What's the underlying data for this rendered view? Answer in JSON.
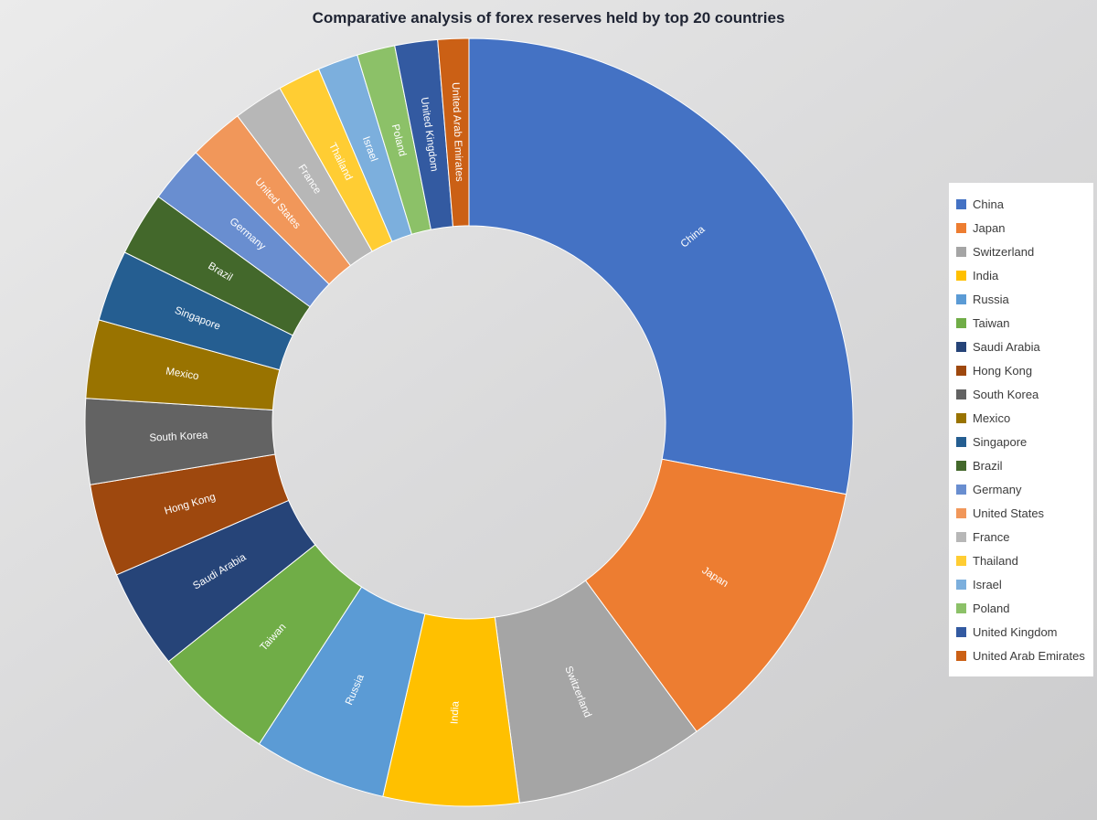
{
  "chart_data": {
    "type": "pie",
    "subtype": "donut",
    "title": "Comparative analysis of forex reserves held by top 20 countries",
    "categories": [
      "China",
      "Japan",
      "Switzerland",
      "India",
      "Russia",
      "Taiwan",
      "Saudi Arabia",
      "Hong Kong",
      "South Korea",
      "Mexico",
      "Singapore",
      "Brazil",
      "Germany",
      "United States",
      "France",
      "Thailand",
      "Israel",
      "Poland",
      "United Kingdom",
      "United Arab Emirates"
    ],
    "values_percent": [
      28.0,
      11.9,
      8.0,
      5.7,
      5.6,
      5.1,
      4.2,
      3.9,
      3.6,
      3.3,
      3.0,
      2.7,
      2.4,
      2.3,
      2.1,
      1.8,
      1.7,
      1.6,
      1.8,
      1.3
    ],
    "values_note": "No numeric data labels are rendered in the chart; values are percent shares estimated from slice arc angles.",
    "colors": [
      "#4472C4",
      "#ED7D31",
      "#A5A5A5",
      "#FFC000",
      "#5B9BD5",
      "#70AD47",
      "#264478",
      "#9E480E",
      "#636363",
      "#997300",
      "#255E91",
      "#43682B",
      "#698ED0",
      "#F1975A",
      "#B7B7B7",
      "#FFCD33",
      "#7CAFDD",
      "#8CC168",
      "#335AA1",
      "#CB6015"
    ],
    "start_angle_deg": 0,
    "direction": "clockwise",
    "legend_position": "right",
    "slice_label_style": "category name drawn on each slice in white, rotated along the radial direction"
  },
  "colors": {
    "background": "#d9d9da",
    "title_text": "#1f2433",
    "legend_background": "#ffffff",
    "legend_text": "#3b3b3b",
    "slice_border": "#ffffff",
    "slice_label_text": "#ffffff"
  }
}
